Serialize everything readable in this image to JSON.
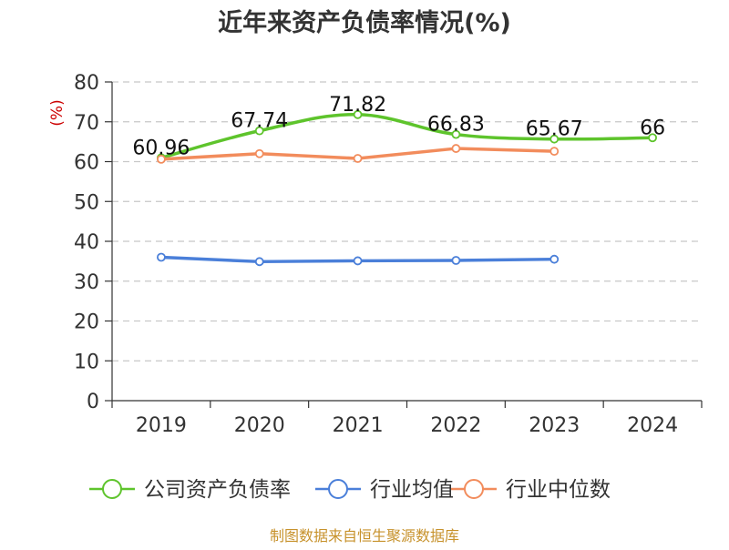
{
  "title": "近年来资产负债率情况(%)",
  "source": "制图数据来自恒生聚源数据库",
  "chart_data": {
    "type": "line",
    "title": "近年来资产负债率情况(%)",
    "xlabel": "",
    "ylabel": "(%)",
    "categories": [
      "2019",
      "2020",
      "2021",
      "2022",
      "2023",
      "2024"
    ],
    "ylim": [
      0,
      80
    ],
    "yticks": [
      0,
      10,
      20,
      30,
      40,
      50,
      60,
      70,
      80
    ],
    "ytick_labels": [
      "0",
      "10",
      "20",
      "30",
      "40",
      "50",
      "60",
      "70",
      "80"
    ],
    "grid": "horizontal dashed",
    "legend_position": "bottom",
    "series": [
      {
        "name": "公司资产负债率",
        "color": "#5ec42c",
        "values": [
          60.96,
          67.74,
          71.82,
          66.83,
          65.67,
          66
        ],
        "labels": [
          "60.96",
          "67.74",
          "71.82",
          "66.83",
          "65.67",
          "66"
        ],
        "smooth": true
      },
      {
        "name": "行业均值",
        "color": "#4a7fd9",
        "values": [
          36.0,
          34.9,
          35.1,
          35.2,
          35.5,
          null
        ],
        "labels": []
      },
      {
        "name": "行业中位数",
        "color": "#f28c5c",
        "values": [
          60.6,
          62.0,
          60.8,
          63.3,
          62.6,
          null
        ],
        "labels": []
      }
    ]
  }
}
